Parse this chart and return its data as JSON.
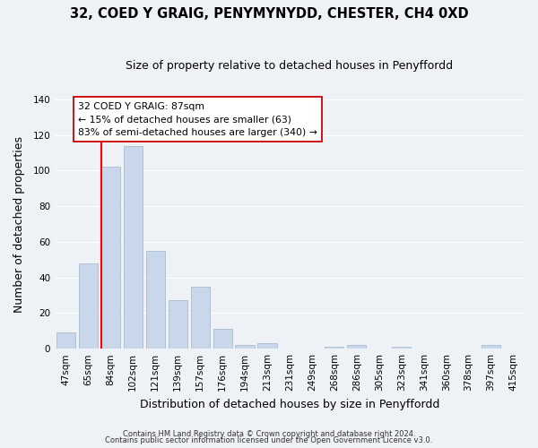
{
  "title": "32, COED Y GRAIG, PENYMYNYDD, CHESTER, CH4 0XD",
  "subtitle": "Size of property relative to detached houses in Penyffordd",
  "xlabel": "Distribution of detached houses by size in Penyffordd",
  "ylabel": "Number of detached properties",
  "bar_color": "#c8d8ea",
  "bar_edge_color": "#aabcce",
  "categories": [
    "47sqm",
    "65sqm",
    "84sqm",
    "102sqm",
    "121sqm",
    "139sqm",
    "157sqm",
    "176sqm",
    "194sqm",
    "213sqm",
    "231sqm",
    "249sqm",
    "268sqm",
    "286sqm",
    "305sqm",
    "323sqm",
    "341sqm",
    "360sqm",
    "378sqm",
    "397sqm",
    "415sqm"
  ],
  "values": [
    9,
    48,
    102,
    114,
    55,
    27,
    35,
    11,
    2,
    3,
    0,
    0,
    1,
    2,
    0,
    1,
    0,
    0,
    0,
    2,
    0
  ],
  "ylim": [
    0,
    140
  ],
  "yticks": [
    0,
    20,
    40,
    60,
    80,
    100,
    120,
    140
  ],
  "red_line_index": 2,
  "annotation_line1": "32 COED Y GRAIG: 87sqm",
  "annotation_line2": "← 15% of detached houses are smaller (63)",
  "annotation_line3": "83% of semi-detached houses are larger (340) →",
  "footer1": "Contains HM Land Registry data © Crown copyright and database right 2024.",
  "footer2": "Contains public sector information licensed under the Open Government Licence v3.0.",
  "background_color": "#eef2f7",
  "grid_color": "#ffffff",
  "title_fontsize": 10.5,
  "subtitle_fontsize": 9,
  "tick_fontsize": 7.5,
  "axis_label_fontsize": 9
}
